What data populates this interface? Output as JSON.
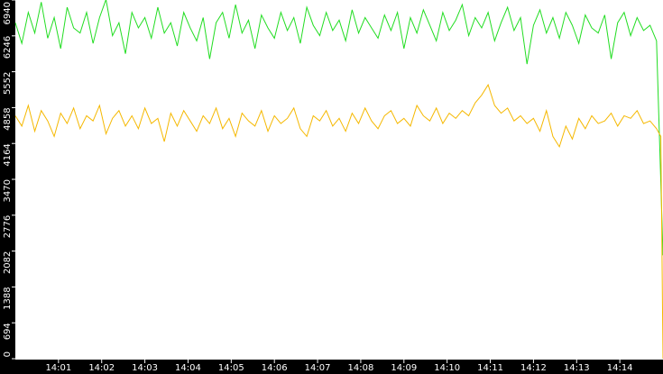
{
  "chart_data": {
    "type": "line",
    "x": [
      0,
      0.15,
      0.3,
      0.45,
      0.6,
      0.75,
      0.9,
      1.05,
      1.2,
      1.35,
      1.5,
      1.65,
      1.8,
      1.95,
      2.1,
      2.25,
      2.4,
      2.55,
      2.7,
      2.85,
      3,
      3.15,
      3.3,
      3.45,
      3.6,
      3.75,
      3.9,
      4.05,
      4.2,
      4.35,
      4.5,
      4.65,
      4.8,
      4.95,
      5.1,
      5.25,
      5.4,
      5.55,
      5.7,
      5.85,
      6,
      6.15,
      6.3,
      6.45,
      6.6,
      6.75,
      6.9,
      7.05,
      7.2,
      7.35,
      7.5,
      7.65,
      7.8,
      7.95,
      8.1,
      8.25,
      8.4,
      8.55,
      8.7,
      8.85,
      9,
      9.15,
      9.3,
      9.45,
      9.6,
      9.75,
      9.9,
      10.05,
      10.2,
      10.35,
      10.5,
      10.65,
      10.8,
      10.95,
      11.1,
      11.25,
      11.4,
      11.55,
      11.7,
      11.85,
      12,
      12.15,
      12.3,
      12.45,
      12.6,
      12.75,
      12.9,
      13.05,
      13.2,
      13.35,
      13.5,
      13.65,
      13.8,
      13.95,
      14.1,
      14.25,
      14.4,
      14.55,
      14.7,
      14.85,
      14.95,
      15
    ],
    "series": [
      {
        "color": "#22dd22",
        "values": [
          6500,
          6100,
          6700,
          6300,
          6900,
          6200,
          6600,
          6000,
          6800,
          6400,
          6300,
          6700,
          6100,
          6600,
          6950,
          6250,
          6500,
          5900,
          6700,
          6400,
          6600,
          6200,
          6800,
          6300,
          6500,
          6050,
          6700,
          6400,
          6150,
          6600,
          5800,
          6500,
          6700,
          6200,
          6850,
          6300,
          6550,
          6000,
          6650,
          6400,
          6200,
          6700,
          6350,
          6600,
          6100,
          6800,
          6450,
          6250,
          6700,
          6350,
          6550,
          6150,
          6750,
          6300,
          6600,
          6400,
          6200,
          6650,
          6350,
          6700,
          6000,
          6600,
          6300,
          6750,
          6450,
          6150,
          6700,
          6350,
          6550,
          6850,
          6250,
          6600,
          6400,
          6700,
          6150,
          6500,
          6800,
          6350,
          6600,
          5700,
          6450,
          6750,
          6300,
          6600,
          6200,
          6700,
          6450,
          6100,
          6650,
          6400,
          6300,
          6650,
          5800,
          6500,
          6700,
          6250,
          6600,
          6350,
          6450,
          6150,
          3400,
          2000
        ]
      },
      {
        "color": "#f5b800",
        "values": [
          4700,
          4500,
          4900,
          4400,
          4800,
          4600,
          4300,
          4750,
          4550,
          4850,
          4450,
          4700,
          4600,
          4900,
          4350,
          4650,
          4800,
          4500,
          4700,
          4450,
          4850,
          4550,
          4650,
          4200,
          4750,
          4500,
          4800,
          4600,
          4400,
          4700,
          4550,
          4850,
          4450,
          4650,
          4300,
          4750,
          4600,
          4500,
          4800,
          4400,
          4700,
          4550,
          4650,
          4850,
          4450,
          4300,
          4700,
          4600,
          4800,
          4500,
          4650,
          4400,
          4750,
          4550,
          4850,
          4600,
          4450,
          4700,
          4800,
          4550,
          4650,
          4500,
          4900,
          4700,
          4600,
          4850,
          4550,
          4750,
          4650,
          4800,
          4700,
          4950,
          5100,
          5300,
          4900,
          4750,
          4850,
          4600,
          4700,
          4550,
          4650,
          4400,
          4800,
          4300,
          4100,
          4500,
          4250,
          4650,
          4450,
          4700,
          4550,
          4600,
          4750,
          4500,
          4700,
          4650,
          4800,
          4550,
          4600,
          4450,
          4300,
          0
        ]
      }
    ],
    "xlim": [
      0,
      15
    ],
    "xticks": [
      {
        "value": 1,
        "label": "14:01"
      },
      {
        "value": 2,
        "label": "14:02"
      },
      {
        "value": 3,
        "label": "14:03"
      },
      {
        "value": 4,
        "label": "14:04"
      },
      {
        "value": 5,
        "label": "14:05"
      },
      {
        "value": 6,
        "label": "14:06"
      },
      {
        "value": 7,
        "label": "14:07"
      },
      {
        "value": 8,
        "label": "14:08"
      },
      {
        "value": 9,
        "label": "14:09"
      },
      {
        "value": 10,
        "label": "14:10"
      },
      {
        "value": 11,
        "label": "14:11"
      },
      {
        "value": 12,
        "label": "14:12"
      },
      {
        "value": 13,
        "label": "14:13"
      },
      {
        "value": 14,
        "label": "14:14"
      }
    ],
    "ylim": [
      0,
      6940
    ],
    "yticks": [
      0,
      694,
      1388,
      2082,
      2776,
      3470,
      4164,
      4858,
      5552,
      6246,
      6940
    ]
  }
}
